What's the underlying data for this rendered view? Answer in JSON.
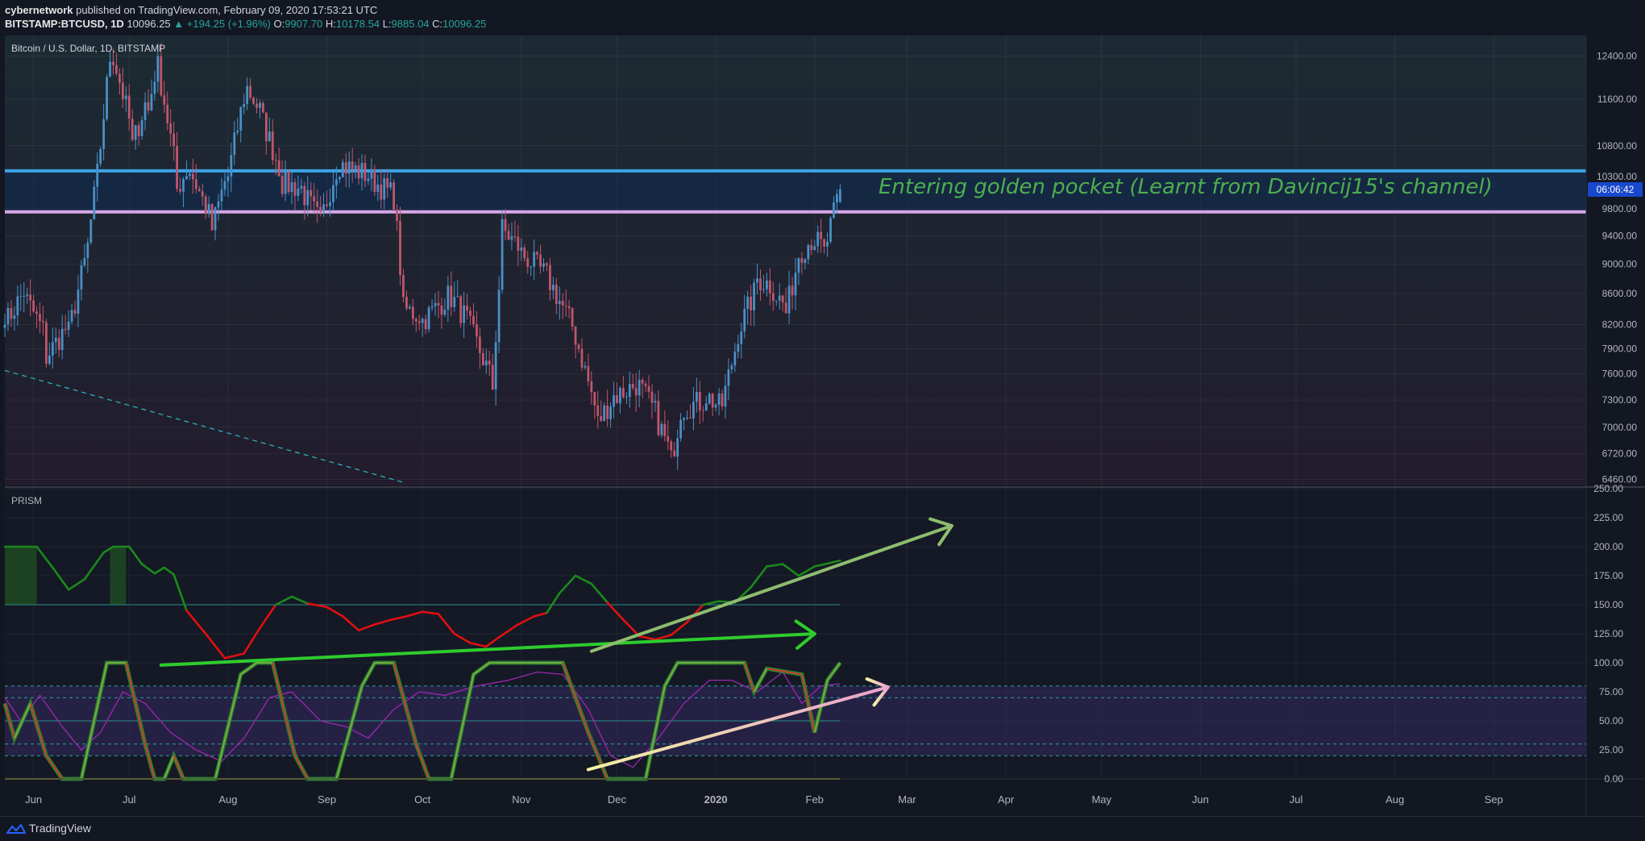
{
  "header": {
    "author": "cybernetwork",
    "published_text": "published on TradingView.com, February 09, 2020 17:53:21 UTC",
    "symbol": "BITSTAMP:BTCUSD, 1D",
    "last": "10096.25",
    "change": "▲ +194.25 (+1.96%)",
    "o_label": "O:",
    "o_value": "9907.70",
    "h_label": "H:",
    "h_value": "10178.54",
    "l_label": "L:",
    "l_value": "9885.04",
    "c_label": "C:",
    "c_value": "10096.25"
  },
  "footer": {
    "brand": "TradingView"
  },
  "colors": {
    "background": "#131722",
    "up": "#4a90c8",
    "down": "#c2566c",
    "resistance_line": "#3da3e6",
    "golden_line": "#d6a6e6",
    "annotation": "#4caf50",
    "prism_green": "#1b8a1b",
    "prism_red": "#e01010",
    "arrow_green": "#2ecc2e",
    "arrow_sage": "#8fbc6f"
  },
  "chart_data": [
    {
      "type": "candlestick",
      "title": "Bitcoin / U.S. Dollar, 1D, BITSTAMP",
      "price_scale": "log",
      "ylim": [
        6400,
        12800
      ],
      "y_ticks": [
        "12400.00",
        "11600.00",
        "10800.00",
        "10300.00",
        "9800.00",
        "9400.00",
        "9000.00",
        "8600.00",
        "8200.00",
        "7900.00",
        "7600.00",
        "7300.00",
        "7000.00",
        "6720.00",
        "6460.00"
      ],
      "x_ticks": [
        "Jun",
        "Jul",
        "Aug",
        "Sep",
        "Oct",
        "Nov",
        "Dec",
        "2020",
        "Feb",
        "Mar",
        "Apr",
        "May",
        "Jun",
        "Jul",
        "Aug",
        "Sep"
      ],
      "x_range": [
        "2019-05-23",
        "2020-09-30"
      ],
      "countdown_label": "06:06:42",
      "annotation": "Entering golden pocket (Learnt from Davincij15's channel)",
      "horizontal_lines": [
        {
          "name": "resistance",
          "price": 10390
        },
        {
          "name": "golden-pocket",
          "price": 9755
        }
      ],
      "trendline_dashed": {
        "from": [
          "2019-05-23",
          7640
        ],
        "to": [
          "2019-09-25",
          6430
        ]
      },
      "anchors": [
        [
          "2019-05-23",
          7700,
          8200
        ],
        [
          "2019-05-30",
          8700,
          8500
        ],
        [
          "2019-06-05",
          8050,
          7800
        ],
        [
          "2019-06-12",
          8200,
          8100
        ],
        [
          "2019-06-18",
          9200,
          9250
        ],
        [
          "2019-06-22",
          10700,
          10800
        ],
        [
          "2019-06-26",
          12900,
          12400
        ],
        [
          "2019-07-02",
          11000,
          10800
        ],
        [
          "2019-07-07",
          11700,
          11400
        ],
        [
          "2019-07-10",
          12400,
          12200
        ],
        [
          "2019-07-16",
          10300,
          10100
        ],
        [
          "2019-07-20",
          10500,
          10400
        ],
        [
          "2019-07-27",
          9600,
          9500
        ],
        [
          "2019-08-01",
          10400,
          10300
        ],
        [
          "2019-08-07",
          11900,
          11800
        ],
        [
          "2019-08-12",
          11300,
          11200
        ],
        [
          "2019-08-18",
          10300,
          10200
        ],
        [
          "2019-08-25",
          10100,
          10000
        ],
        [
          "2019-08-30",
          9600,
          9600
        ],
        [
          "2019-09-05",
          10600,
          10500
        ],
        [
          "2019-09-15",
          10300,
          10250
        ],
        [
          "2019-09-22",
          10000,
          9980
        ],
        [
          "2019-09-25",
          8450,
          8400
        ],
        [
          "2019-10-01",
          8300,
          8250
        ],
        [
          "2019-10-10",
          8600,
          8550
        ],
        [
          "2019-10-16",
          8200,
          8150
        ],
        [
          "2019-10-23",
          7500,
          7450
        ],
        [
          "2019-10-26",
          9300,
          9500
        ],
        [
          "2019-11-01",
          9200,
          9150
        ],
        [
          "2019-11-10",
          8800,
          8750
        ],
        [
          "2019-11-18",
          8100,
          8050
        ],
        [
          "2019-11-25",
          7100,
          7050
        ],
        [
          "2019-12-01",
          7400,
          7350
        ],
        [
          "2019-12-08",
          7500,
          7450
        ],
        [
          "2019-12-14",
          7100,
          7050
        ],
        [
          "2019-12-18",
          6700,
          6650
        ],
        [
          "2019-12-21",
          7150,
          7200
        ],
        [
          "2019-12-29",
          7300,
          7350
        ],
        [
          "2020-01-03",
          7200,
          7250
        ],
        [
          "2020-01-08",
          8050,
          8100
        ],
        [
          "2020-01-14",
          8700,
          8800
        ],
        [
          "2020-01-19",
          8700,
          8650
        ],
        [
          "2020-01-23",
          8400,
          8350
        ],
        [
          "2020-01-27",
          9100,
          9150
        ],
        [
          "2020-02-01",
          9400,
          9350
        ],
        [
          "2020-02-04",
          9200,
          9150
        ],
        [
          "2020-02-09",
          10096,
          10096
        ]
      ]
    },
    {
      "type": "line",
      "title": "PRISM",
      "ylim": [
        0,
        250
      ],
      "y_ticks": [
        "250.00",
        "225.00",
        "200.00",
        "175.00",
        "150.00",
        "125.00",
        "100.00",
        "75.00",
        "50.00",
        "25.00",
        "0.00"
      ],
      "reference_lines": [
        150,
        80,
        70,
        50,
        30,
        20,
        0
      ],
      "series": [
        {
          "points": [
            [
              "2019-05-23",
              200
            ],
            [
              "2019-06-02",
              200
            ],
            [
              "2019-06-07",
              182
            ],
            [
              "2019-06-12",
              163
            ],
            [
              "2019-06-17",
              172
            ],
            [
              "2019-06-23",
              195
            ],
            [
              "2019-06-26",
              200
            ],
            [
              "2019-07-01",
              200
            ],
            [
              "2019-07-05",
              185
            ],
            [
              "2019-07-09",
              177
            ],
            [
              "2019-07-12",
              182
            ],
            [
              "2019-07-15",
              176
            ],
            [
              "2019-07-19",
              145
            ],
            [
              "2019-07-25",
              125
            ],
            [
              "2019-07-31",
              104
            ],
            [
              "2019-08-06",
              108
            ],
            [
              "2019-08-11",
              130
            ],
            [
              "2019-08-16",
              150
            ],
            [
              "2019-08-21",
              157
            ],
            [
              "2019-08-26",
              151
            ],
            [
              "2019-09-01",
              148
            ],
            [
              "2019-09-06",
              140
            ],
            [
              "2019-09-11",
              128
            ],
            [
              "2019-09-16",
              133
            ],
            [
              "2019-09-21",
              137
            ],
            [
              "2019-09-26",
              140
            ],
            [
              "2019-10-01",
              144
            ],
            [
              "2019-10-06",
              142
            ],
            [
              "2019-10-11",
              125
            ],
            [
              "2019-10-16",
              117
            ],
            [
              "2019-10-21",
              114
            ],
            [
              "2019-10-25",
              122
            ],
            [
              "2019-10-31",
              133
            ],
            [
              "2019-11-05",
              140
            ],
            [
              "2019-11-09",
              143
            ],
            [
              "2019-11-13",
              160
            ],
            [
              "2019-11-18",
              175
            ],
            [
              "2019-11-23",
              168
            ],
            [
              "2019-11-28",
              152
            ],
            [
              "2019-12-03",
              137
            ],
            [
              "2019-12-08",
              123
            ],
            [
              "2019-12-13",
              120
            ],
            [
              "2019-12-18",
              124
            ],
            [
              "2019-12-23",
              135
            ],
            [
              "2019-12-28",
              150
            ],
            [
              "2020-01-02",
              153
            ],
            [
              "2020-01-07",
              152
            ],
            [
              "2020-01-12",
              165
            ],
            [
              "2020-01-17",
              183
            ],
            [
              "2020-01-22",
              185
            ],
            [
              "2020-01-27",
              175
            ],
            [
              "2020-02-01",
              183
            ],
            [
              "2020-02-09",
              188
            ]
          ]
        },
        {
          "points": [
            [
              "2019-05-23",
              70
            ],
            [
              "2019-05-28",
              50
            ],
            [
              "2019-06-03",
              72
            ],
            [
              "2019-06-10",
              45
            ],
            [
              "2019-06-16",
              25
            ],
            [
              "2019-06-22",
              40
            ],
            [
              "2019-06-29",
              75
            ],
            [
              "2019-07-06",
              65
            ],
            [
              "2019-07-14",
              40
            ],
            [
              "2019-07-22",
              25
            ],
            [
              "2019-07-30",
              15
            ],
            [
              "2019-08-06",
              35
            ],
            [
              "2019-08-14",
              70
            ],
            [
              "2019-08-21",
              75
            ],
            [
              "2019-08-30",
              50
            ],
            [
              "2019-09-07",
              45
            ],
            [
              "2019-09-14",
              35
            ],
            [
              "2019-09-22",
              60
            ],
            [
              "2019-09-30",
              75
            ],
            [
              "2019-10-08",
              72
            ],
            [
              "2019-10-18",
              80
            ],
            [
              "2019-10-28",
              85
            ],
            [
              "2019-11-06",
              92
            ],
            [
              "2019-11-14",
              90
            ],
            [
              "2019-11-22",
              60
            ],
            [
              "2019-11-29",
              20
            ],
            [
              "2019-12-06",
              10
            ],
            [
              "2019-12-14",
              35
            ],
            [
              "2019-12-22",
              65
            ],
            [
              "2019-12-30",
              85
            ],
            [
              "2020-01-06",
              85
            ],
            [
              "2020-01-14",
              75
            ],
            [
              "2020-01-22",
              92
            ],
            [
              "2020-01-28",
              65
            ],
            [
              "2020-02-03",
              80
            ],
            [
              "2020-02-09",
              82
            ]
          ]
        },
        {
          "points": [
            [
              "2019-05-23",
              65
            ],
            [
              "2019-05-26",
              35
            ],
            [
              "2019-05-31",
              65
            ],
            [
              "2019-06-05",
              20
            ],
            [
              "2019-06-10",
              0
            ],
            [
              "2019-06-16",
              0
            ],
            [
              "2019-06-24",
              100
            ],
            [
              "2019-06-30",
              100
            ],
            [
              "2019-07-06",
              30
            ],
            [
              "2019-07-09",
              0
            ],
            [
              "2019-07-12",
              0
            ],
            [
              "2019-07-15",
              20
            ],
            [
              "2019-07-18",
              0
            ],
            [
              "2019-07-28",
              0
            ],
            [
              "2019-08-05",
              90
            ],
            [
              "2019-08-10",
              100
            ],
            [
              "2019-08-15",
              100
            ],
            [
              "2019-08-22",
              20
            ],
            [
              "2019-08-26",
              0
            ],
            [
              "2019-09-04",
              0
            ],
            [
              "2019-09-12",
              80
            ],
            [
              "2019-09-16",
              100
            ],
            [
              "2019-09-22",
              100
            ],
            [
              "2019-09-29",
              30
            ],
            [
              "2019-10-03",
              0
            ],
            [
              "2019-10-10",
              0
            ],
            [
              "2019-10-17",
              90
            ],
            [
              "2019-10-22",
              100
            ],
            [
              "2019-11-14",
              100
            ],
            [
              "2019-11-22",
              40
            ],
            [
              "2019-11-28",
              0
            ],
            [
              "2019-12-10",
              0
            ],
            [
              "2019-12-16",
              80
            ],
            [
              "2019-12-20",
              100
            ],
            [
              "2020-01-10",
              100
            ],
            [
              "2020-01-13",
              75
            ],
            [
              "2020-01-17",
              95
            ],
            [
              "2020-01-28",
              90
            ],
            [
              "2020-02-01",
              40
            ],
            [
              "2020-02-05",
              85
            ],
            [
              "2020-02-09",
              100
            ]
          ]
        }
      ],
      "shaded_days": [
        [
          "2019-05-23",
          "2019-06-02"
        ],
        [
          "2019-06-25",
          "2019-06-30"
        ]
      ],
      "drawn_arrows": [
        {
          "name": "green-arrow",
          "from": [
            "2019-07-11",
            98
          ],
          "to": [
            "2020-02-01",
            125
          ]
        },
        {
          "name": "sage-arrow",
          "from": [
            "2019-11-23",
            110
          ],
          "to": [
            "2020-03-15",
            218
          ]
        },
        {
          "name": "gradient-arrow",
          "from": [
            "2019-11-22",
            8
          ],
          "to": [
            "2020-02-24",
            79
          ]
        }
      ]
    }
  ]
}
